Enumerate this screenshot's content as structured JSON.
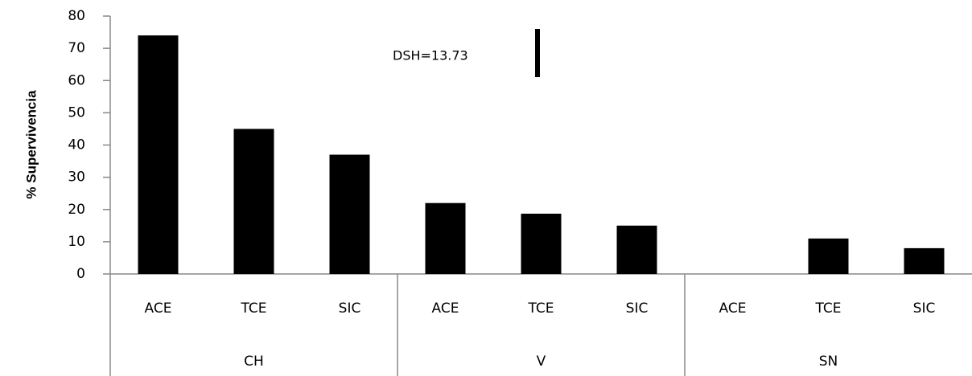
{
  "chart_data": {
    "type": "bar",
    "y_label": "% Supervivencia",
    "annotation": "DSH=13.73",
    "categories": [
      "ACE",
      "TCE",
      "SIC",
      "ACE",
      "TCE",
      "SIC",
      "ACE",
      "TCE",
      "SIC"
    ],
    "groups": [
      "CH",
      "V",
      "SN"
    ],
    "values": [
      74,
      45,
      37,
      22,
      18.7,
      15,
      0,
      11,
      8
    ],
    "color": "#000000",
    "ylim": [
      0,
      80
    ],
    "yticks": [
      0,
      10,
      20,
      30,
      40,
      50,
      60,
      70,
      80
    ],
    "grid": false
  }
}
